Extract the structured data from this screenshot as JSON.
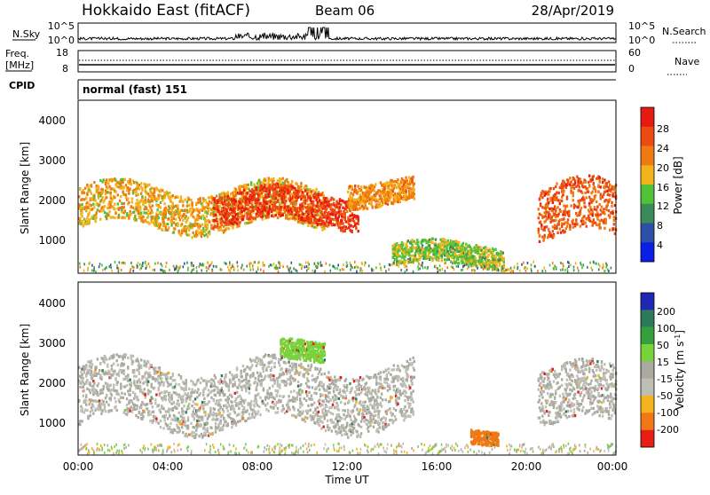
{
  "header": {
    "station": "Hokkaido East (fitACF)",
    "beam": "Beam 06",
    "date": "28/Apr/2019"
  },
  "top_panels": {
    "nsky": {
      "label": "N.Sky",
      "ticks": [
        "10^5",
        "10^0"
      ],
      "right_ticks": [
        "10^5",
        "10^0"
      ],
      "right_label": "N.Search"
    },
    "freq": {
      "label_line1": "Freq.",
      "label_line2": "[MHz]",
      "ticks": [
        "18",
        "8"
      ],
      "right_ticks": [
        "60",
        "0"
      ],
      "right_label": "Nave"
    },
    "cpid": {
      "label": "CPID",
      "mode_text": "normal (fast) 151"
    }
  },
  "time_axis": {
    "ticks": [
      "00:00",
      "04:00",
      "08:00",
      "12:00",
      "16:00",
      "20:00",
      "00:00"
    ],
    "label": "Time UT"
  },
  "power_panel": {
    "ylabel": "Slant Range [km]",
    "yticks": [
      "4000",
      "3000",
      "2000",
      "1000"
    ],
    "colorbar_title": "Power [dB]",
    "colorbar_ticks": [
      "28",
      "24",
      "20",
      "16",
      "12",
      "8",
      "4"
    ]
  },
  "velocity_panel": {
    "ylabel": "Slant Range [km]",
    "yticks": [
      "4000",
      "3000",
      "2000",
      "1000"
    ],
    "colorbar_title": "Velocity [m s",
    "colorbar_title_sup": "-1",
    "colorbar_title_end": "]",
    "colorbar_ticks": [
      "200",
      "100",
      "50",
      "15",
      "-15",
      "-50",
      "-100",
      "-200"
    ]
  },
  "colors": {
    "power_scale": [
      "#0a1ee6",
      "#2e4fa8",
      "#3b8a5a",
      "#4fc23a",
      "#f2b21a",
      "#f07a12",
      "#ec4a10",
      "#e61a10"
    ],
    "velocity_scale": [
      "#e61e14",
      "#f07814",
      "#f5b41e",
      "#bebeb4",
      "#aaaaa0",
      "#78d23c",
      "#32a03c",
      "#2c7a5a",
      "#1e28b4"
    ]
  },
  "chart_data": [
    {
      "type": "heatmap",
      "title": "Power",
      "xlabel": "Time UT",
      "ylabel": "Slant Range [km]",
      "xlim": [
        "00:00",
        "24:00"
      ],
      "ylim": [
        180,
        4500
      ],
      "zlabel": "Power [dB]",
      "zticks": [
        4,
        8,
        12,
        16,
        20,
        24,
        28
      ],
      "features": [
        {
          "start": "00:00",
          "end": "11:00",
          "range_from": 1300,
          "range_to": 2300,
          "level_db": 20
        },
        {
          "start": "06:00",
          "end": "12:30",
          "range_from": 1400,
          "range_to": 2200,
          "level_db": 28
        },
        {
          "start": "12:00",
          "end": "15:00",
          "range_from": 1900,
          "range_to": 2500,
          "level_db": 22
        },
        {
          "start": "20:30",
          "end": "24:00",
          "range_from": 1000,
          "range_to": 2300,
          "level_db": 26
        },
        {
          "start": "14:00",
          "end": "19:00",
          "range_from": 350,
          "range_to": 900,
          "level_db": 16
        }
      ]
    },
    {
      "type": "heatmap",
      "title": "Velocity",
      "xlabel": "Time UT",
      "ylabel": "Slant Range [km]",
      "xlim": [
        "00:00",
        "24:00"
      ],
      "ylim": [
        180,
        4500
      ],
      "zlabel": "Velocity [m s-1]",
      "zticks": [
        -200,
        -100,
        -50,
        -15,
        15,
        50,
        100,
        200
      ],
      "features": [
        {
          "start": "00:00",
          "end": "15:00",
          "range_from": 900,
          "range_to": 2400,
          "velocity": 0
        },
        {
          "start": "17:30",
          "end": "18:45",
          "range_from": 450,
          "range_to": 800,
          "velocity": -60
        },
        {
          "start": "09:00",
          "end": "11:00",
          "range_from": 2500,
          "range_to": 3000,
          "velocity": 40
        },
        {
          "start": "20:30",
          "end": "24:00",
          "range_from": 900,
          "range_to": 2300,
          "velocity": 0
        }
      ]
    }
  ]
}
